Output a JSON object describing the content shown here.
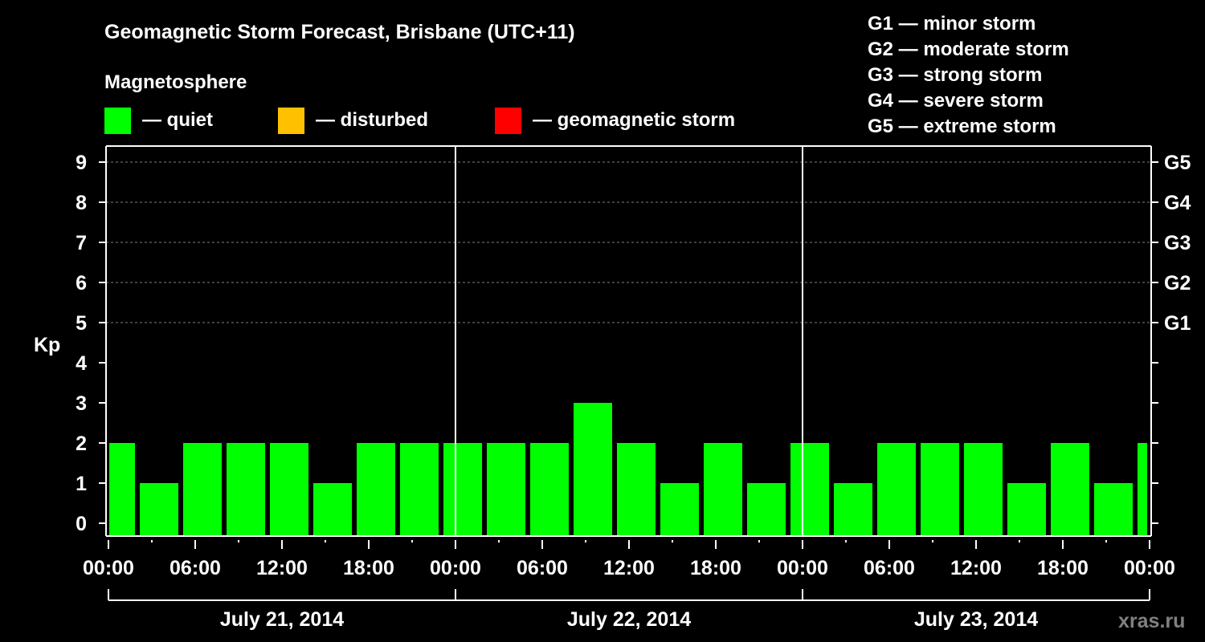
{
  "chart_data": {
    "type": "bar",
    "title": "Geomagnetic Storm Forecast, Brisbane (UTC+11)",
    "legend_title": "Magnetosphere",
    "legend": [
      {
        "label": "— quiet",
        "color": "#00ff00"
      },
      {
        "label": "— disturbed",
        "color": "#ffc000"
      },
      {
        "label": "— geomagnetic storm",
        "color": "#ff0000"
      }
    ],
    "storm_scale": [
      "G1 — minor storm",
      "G2 — moderate storm",
      "G3 — strong storm",
      "G4 — severe storm",
      "G5 — extreme storm"
    ],
    "ylabel": "Kp",
    "ylim": [
      0,
      9
    ],
    "yticks": [
      "0",
      "1",
      "2",
      "3",
      "4",
      "5",
      "6",
      "7",
      "8",
      "9"
    ],
    "right_ticks": [
      {
        "kp": 5,
        "label": "G1"
      },
      {
        "kp": 6,
        "label": "G2"
      },
      {
        "kp": 7,
        "label": "G3"
      },
      {
        "kp": 8,
        "label": "G4"
      },
      {
        "kp": 9,
        "label": "G5"
      }
    ],
    "xrange_hours": [
      0,
      72
    ],
    "xticks": [
      "00:00",
      "06:00",
      "12:00",
      "18:00",
      "00:00",
      "06:00",
      "12:00",
      "18:00",
      "00:00",
      "06:00",
      "12:00",
      "18:00",
      "00:00"
    ],
    "days": [
      "July 21, 2014",
      "July 22, 2014",
      "July 23, 2014"
    ],
    "bar_hours": 3,
    "bars": [
      {
        "start": -1,
        "kp": 2
      },
      {
        "start": 2,
        "kp": 1
      },
      {
        "start": 5,
        "kp": 2
      },
      {
        "start": 8,
        "kp": 2
      },
      {
        "start": 11,
        "kp": 2
      },
      {
        "start": 14,
        "kp": 1
      },
      {
        "start": 17,
        "kp": 2
      },
      {
        "start": 20,
        "kp": 2
      },
      {
        "start": 23,
        "kp": 2
      },
      {
        "start": 26,
        "kp": 2
      },
      {
        "start": 29,
        "kp": 2
      },
      {
        "start": 32,
        "kp": 3
      },
      {
        "start": 35,
        "kp": 2
      },
      {
        "start": 38,
        "kp": 1
      },
      {
        "start": 41,
        "kp": 2
      },
      {
        "start": 44,
        "kp": 1
      },
      {
        "start": 47,
        "kp": 2
      },
      {
        "start": 50,
        "kp": 1
      },
      {
        "start": 53,
        "kp": 2
      },
      {
        "start": 56,
        "kp": 2
      },
      {
        "start": 59,
        "kp": 2
      },
      {
        "start": 62,
        "kp": 1
      },
      {
        "start": 65,
        "kp": 2
      },
      {
        "start": 68,
        "kp": 1
      },
      {
        "start": 71,
        "kp": 2
      }
    ],
    "bar_color": "#00ff00",
    "grid": true
  },
  "watermark": "xras.ru"
}
